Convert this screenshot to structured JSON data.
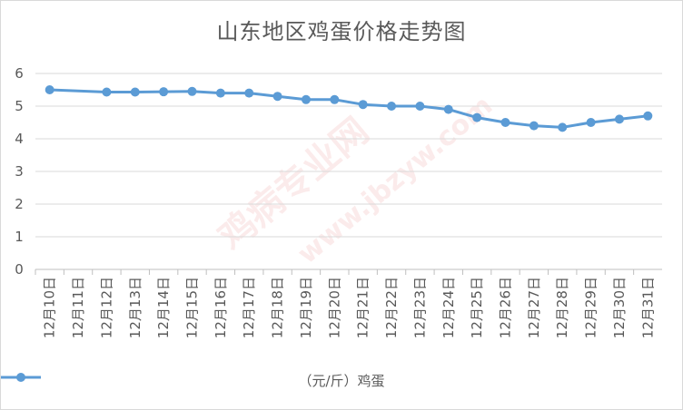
{
  "chart_data": {
    "type": "line",
    "title": "山东地区鸡蛋价格走势图",
    "categories": [
      "12月10日",
      "12月11日",
      "12月12日",
      "12月13日",
      "12月14日",
      "12月15日",
      "12月16日",
      "12月17日",
      "12月18日",
      "12月19日",
      "12月20日",
      "12月21日",
      "12月22日",
      "12月23日",
      "12月24日",
      "12月25日",
      "12月26日",
      "12月27日",
      "12月28日",
      "12月29日",
      "12月30日",
      "12月31日"
    ],
    "series": [
      {
        "name": "（元/斤）鸡蛋",
        "color": "#5b9bd5",
        "values": [
          5.5,
          null,
          5.43,
          5.43,
          5.44,
          5.45,
          5.4,
          5.4,
          5.3,
          5.2,
          5.2,
          5.05,
          5.0,
          5.0,
          4.9,
          4.65,
          4.5,
          4.4,
          4.35,
          4.5,
          4.6,
          4.7
        ]
      }
    ],
    "ylim": [
      0,
      6
    ],
    "yticks": [
      0,
      1,
      2,
      3,
      4,
      5,
      6
    ],
    "grid": true,
    "legend_position": "bottom"
  },
  "watermark": {
    "text_main": "鸡病专业网",
    "text_url": "www.jbzyw.com"
  }
}
